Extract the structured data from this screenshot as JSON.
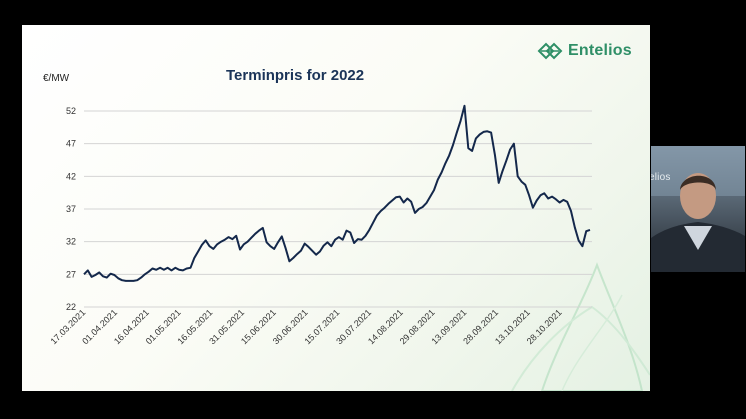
{
  "brand": {
    "name": "Entelios",
    "icon": "entelios-logo-icon",
    "color": "#2f8f67"
  },
  "chart_data": {
    "type": "line",
    "title": "Terminpris for 2022",
    "ylabel": "€/MW",
    "xlabel": "",
    "ylim": [
      22,
      52
    ],
    "yticks": [
      22,
      27,
      32,
      37,
      42,
      47,
      52
    ],
    "grid": true,
    "legend": "none",
    "line_color": "#14284b",
    "x_tick_labels": [
      "17.03.2021",
      "01.04.2021",
      "16.04.2021",
      "01.05.2021",
      "16.05.2021",
      "31.05.2021",
      "15.06.2021",
      "30.06.2021",
      "15.07.2021",
      "30.07.2021",
      "14.08.2021",
      "29.08.2021",
      "13.09.2021",
      "28.09.2021",
      "13.10.2021",
      "28.10.2021"
    ],
    "series": [
      {
        "values": [
          27.0,
          27.6,
          26.6,
          26.9,
          27.3,
          26.7,
          26.5,
          27.1,
          26.9,
          26.4,
          26.1,
          26.0,
          26.0,
          26.0,
          26.1,
          26.5,
          27.0,
          27.4,
          27.9,
          27.7,
          28.0,
          27.7,
          28.0,
          27.6,
          28.0,
          27.7,
          27.6,
          27.9,
          28.0,
          29.5,
          30.5,
          31.5,
          32.2,
          31.3,
          30.9,
          31.6,
          32.0,
          32.3,
          32.7,
          32.4,
          32.9,
          30.8,
          31.6,
          32.0,
          32.6,
          33.2,
          33.7,
          34.1,
          31.9,
          31.3,
          30.9,
          31.9,
          32.8,
          31.0,
          29.0,
          29.5,
          30.1,
          30.6,
          31.7,
          31.2,
          30.6,
          30.0,
          30.5,
          31.4,
          31.9,
          31.3,
          32.3,
          32.7,
          32.3,
          33.7,
          33.4,
          31.8,
          32.4,
          32.3,
          32.9,
          33.8,
          34.9,
          36.0,
          36.7,
          37.2,
          37.8,
          38.3,
          38.8,
          38.9,
          38.0,
          38.6,
          38.1,
          36.4,
          37.0,
          37.3,
          37.9,
          38.9,
          39.9,
          41.5,
          42.6,
          44.0,
          45.2,
          46.8,
          48.7,
          50.5,
          52.8,
          46.3,
          45.9,
          47.8,
          48.4,
          48.8,
          48.9,
          48.7,
          45.3,
          41.0,
          42.8,
          44.4,
          46.1,
          47.0,
          42.0,
          41.2,
          40.7,
          39.1,
          37.2,
          38.3,
          39.1,
          39.4,
          38.6,
          38.9,
          38.5,
          38.0,
          38.4,
          38.1,
          36.7,
          34.2,
          32.2,
          31.3,
          33.6,
          33.8
        ]
      }
    ]
  },
  "webcam": {
    "overlay_text": "elios"
  }
}
